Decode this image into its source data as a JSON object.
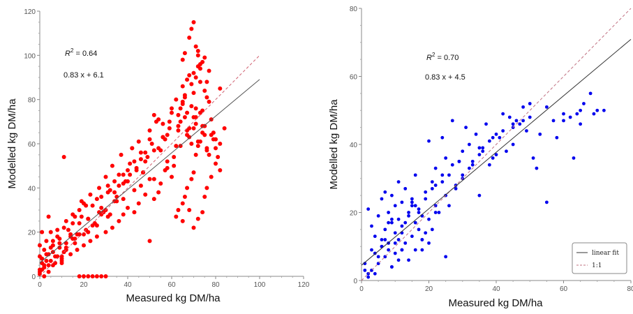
{
  "chart_data": [
    {
      "type": "scatter",
      "xlabel": "Measured kg DM/ha",
      "ylabel": "Modelled kg DM/ha",
      "xlim": [
        0,
        120
      ],
      "ylim": [
        0,
        120
      ],
      "x_ticks": [
        "0",
        "20",
        "40",
        "60",
        "80",
        "100",
        "120"
      ],
      "y_ticks": [
        "0",
        "20",
        "40",
        "60",
        "80",
        "100",
        "120"
      ],
      "point_color": "#ff0000",
      "annotations": {
        "r2_label": "R",
        "r2_sup": "2",
        "r2_value": " = 0.64",
        "fit_label": "0.83 x + 6.1"
      },
      "fit_line": {
        "slope": 0.83,
        "intercept": 6.1,
        "x_range": [
          0,
          100
        ],
        "color": "#555555"
      },
      "identity_line": {
        "x_range": [
          0,
          100
        ],
        "color": "#d06070"
      },
      "x": [
        1,
        2,
        3,
        4,
        5,
        6,
        8,
        9,
        10,
        11,
        12,
        14,
        15,
        16,
        18,
        20,
        22,
        23,
        25,
        27,
        28,
        30,
        32,
        33,
        35,
        37,
        38,
        40,
        42,
        43,
        45,
        47,
        48,
        50,
        52,
        53,
        55,
        57,
        58,
        60,
        61,
        62,
        63,
        64,
        65,
        66,
        67,
        68,
        69,
        70,
        71,
        72,
        73,
        74,
        75,
        76,
        77,
        78,
        80,
        82,
        1,
        3,
        5,
        7,
        9,
        11,
        13,
        15,
        17,
        19,
        21,
        24,
        26,
        29,
        31,
        34,
        36,
        39,
        41,
        44,
        46,
        49,
        51,
        54,
        56,
        59,
        61,
        63,
        65,
        67,
        69,
        71,
        73,
        75,
        77,
        79,
        2,
        4,
        6,
        8,
        10,
        12,
        16,
        19,
        22,
        27,
        31,
        34,
        38,
        43,
        47,
        52,
        56,
        59,
        62,
        64,
        66,
        68,
        70,
        72,
        74,
        76,
        68,
        69,
        70,
        71,
        72,
        73,
        66,
        65,
        67,
        71,
        70,
        72,
        74,
        73,
        75,
        76,
        71,
        70,
        69,
        67,
        66,
        65,
        63,
        62,
        60,
        58,
        57,
        55,
        54,
        52,
        50,
        48,
        46,
        45,
        43,
        41,
        40,
        38,
        36,
        35,
        33,
        31,
        30,
        28,
        26,
        25,
        23,
        21,
        20,
        18,
        17,
        15,
        14,
        12,
        11,
        10,
        9,
        8,
        7,
        6,
        5,
        4,
        3,
        2,
        1,
        0,
        0,
        0,
        1,
        2,
        18,
        20,
        22,
        24,
        26,
        28,
        30,
        50,
        11,
        0,
        0,
        65,
        68,
        70,
        72,
        74,
        75,
        76,
        78,
        80,
        82,
        84,
        60,
        58,
        56,
        54,
        52,
        50,
        48,
        46,
        44,
        42,
        40,
        38,
        36,
        34,
        32,
        30,
        28,
        26,
        24,
        22,
        20,
        18,
        16,
        14,
        12,
        10,
        8,
        6,
        4,
        63,
        64,
        65,
        66,
        67,
        68,
        69,
        70,
        71,
        72,
        73,
        74,
        75,
        76,
        77,
        78,
        79,
        80,
        81,
        82
      ],
      "y": [
        8,
        12,
        16,
        10,
        20,
        14,
        18,
        15,
        6,
        22,
        25,
        19,
        28,
        17,
        30,
        33,
        26,
        37,
        24,
        40,
        31,
        45,
        28,
        50,
        36,
        55,
        42,
        48,
        58,
        39,
        61,
        47,
        52,
        66,
        44,
        70,
        57,
        62,
        49,
        74,
        54,
        80,
        68,
        59,
        86,
        72,
        64,
        91,
        77,
        83,
        69,
        95,
        88,
        75,
        99,
        81,
        93,
        71,
        62,
        85,
        3,
        7,
        13,
        9,
        17,
        11,
        21,
        24,
        19,
        27,
        32,
        23,
        35,
        29,
        41,
        38,
        46,
        43,
        51,
        49,
        56,
        54,
        60,
        58,
        63,
        67,
        50,
        73,
        78,
        66,
        87,
        90,
        94,
        84,
        79,
        65,
        5,
        2,
        16,
        21,
        9,
        13,
        27,
        34,
        20,
        29,
        38,
        43,
        35,
        52,
        47,
        57,
        63,
        70,
        59,
        76,
        82,
        67,
        92,
        100,
        97,
        88,
        108,
        112,
        115,
        104,
        102,
        96,
        101,
        98,
        89,
        76,
        72,
        61,
        68,
        74,
        64,
        58,
        55,
        47,
        44,
        40,
        36,
        33,
        30,
        27,
        45,
        52,
        48,
        42,
        38,
        35,
        44,
        37,
        41,
        33,
        29,
        46,
        31,
        28,
        25,
        34,
        22,
        27,
        20,
        36,
        18,
        24,
        16,
        21,
        14,
        19,
        12,
        17,
        10,
        15,
        11,
        8,
        13,
        9,
        6,
        11,
        7,
        5,
        10,
        4,
        6,
        3,
        9,
        14,
        20,
        0,
        0,
        0,
        0,
        0,
        0,
        0,
        0,
        16,
        54,
        1,
        2,
        25,
        30,
        22,
        26,
        29,
        36,
        40,
        45,
        51,
        60,
        67,
        76,
        64,
        69,
        71,
        73,
        62,
        56,
        53,
        48,
        58,
        43,
        46,
        41,
        34,
        39,
        30,
        28,
        23,
        32,
        26,
        19,
        24,
        15,
        18,
        12,
        7,
        9,
        5,
        27,
        66,
        70,
        79,
        81,
        74,
        63,
        60,
        67,
        72,
        59,
        61,
        65,
        68,
        57,
        55,
        64,
        62,
        58,
        54,
        48
      ]
    },
    {
      "type": "scatter",
      "xlabel": "Measured kg DM/ha",
      "ylabel": "Modelled kg DM/ha",
      "xlim": [
        0,
        80
      ],
      "ylim": [
        0,
        80
      ],
      "x_ticks": [
        "0",
        "20",
        "40",
        "60",
        "80"
      ],
      "y_ticks": [
        "0",
        "20",
        "40",
        "60",
        "80"
      ],
      "point_color": "#0000ee",
      "annotations": {
        "r2_label": "R",
        "r2_sup": "2",
        "r2_value": " = 0.70",
        "fit_label": "0.83 x + 4.5"
      },
      "fit_line": {
        "slope": 0.83,
        "intercept": 4.5,
        "x_range": [
          0,
          80
        ],
        "color": "#333333"
      },
      "identity_line": {
        "x_range": [
          0,
          80
        ],
        "color": "#c07080"
      },
      "legend": {
        "position": "bottom-right",
        "items": [
          "linear fit",
          "1:1"
        ]
      },
      "x": [
        1,
        2,
        2,
        3,
        4,
        4,
        5,
        5,
        6,
        6,
        7,
        7,
        7,
        8,
        8,
        8,
        9,
        9,
        9,
        10,
        10,
        10,
        11,
        11,
        11,
        12,
        12,
        12,
        13,
        13,
        14,
        14,
        15,
        15,
        16,
        16,
        17,
        17,
        18,
        18,
        19,
        19,
        20,
        20,
        21,
        21,
        22,
        22,
        23,
        24,
        24,
        25,
        25,
        26,
        27,
        28,
        29,
        30,
        31,
        32,
        33,
        34,
        35,
        36,
        37,
        38,
        39,
        40,
        41,
        42,
        43,
        44,
        45,
        46,
        47,
        48,
        49,
        50,
        51,
        52,
        53,
        55,
        57,
        58,
        60,
        62,
        63,
        64,
        65,
        66,
        68,
        69,
        70,
        72,
        1,
        3,
        5,
        6,
        8,
        10,
        13,
        15,
        17,
        19,
        21,
        24,
        27,
        30,
        33,
        36,
        39,
        42,
        45,
        48,
        4,
        6,
        9,
        12,
        14,
        16,
        18,
        22,
        26,
        29,
        32,
        35,
        38,
        2,
        3,
        7,
        11,
        15,
        20,
        25,
        30,
        35,
        40,
        45,
        50,
        55,
        60,
        65,
        9,
        12,
        16,
        18,
        22,
        28
      ],
      "y": [
        3,
        21,
        2,
        16,
        8,
        13,
        5,
        19,
        10,
        24,
        7,
        15,
        26,
        11,
        20,
        9,
        17,
        4,
        25,
        14,
        22,
        8,
        18,
        29,
        12,
        9,
        23,
        16,
        11,
        27,
        20,
        6,
        13,
        24,
        17,
        9,
        21,
        15,
        12,
        19,
        24,
        14,
        41,
        18,
        27,
        15,
        22,
        33,
        20,
        42,
        29,
        25,
        36,
        31,
        47,
        28,
        35,
        38,
        45,
        40,
        34,
        43,
        37,
        39,
        46,
        41,
        36,
        43,
        42,
        49,
        38,
        48,
        45,
        47,
        46,
        51,
        44,
        52,
        36,
        33,
        43,
        51,
        47,
        42,
        49,
        48,
        36,
        49,
        50,
        52,
        55,
        49,
        50,
        50,
        5,
        3,
        7,
        12,
        17,
        11,
        17,
        23,
        20,
        26,
        29,
        31,
        34,
        30,
        35,
        38,
        42,
        44,
        40,
        47,
        2,
        10,
        4,
        14,
        19,
        22,
        9,
        28,
        22,
        35,
        33,
        39,
        34,
        1,
        9,
        12,
        6,
        22,
        11,
        7,
        31,
        25,
        37,
        46,
        48,
        23,
        47,
        46,
        18,
        9,
        31,
        12,
        20,
        27
      ]
    }
  ]
}
